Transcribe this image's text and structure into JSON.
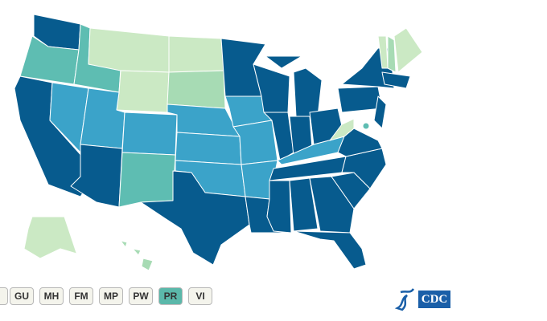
{
  "territories": [
    {
      "label": "GU"
    },
    {
      "label": "MH"
    },
    {
      "label": "FM"
    },
    {
      "label": "MP"
    },
    {
      "label": "PW"
    },
    {
      "label": "PR"
    },
    {
      "label": "VI"
    }
  ],
  "logo": {
    "text": "CDC"
  }
}
